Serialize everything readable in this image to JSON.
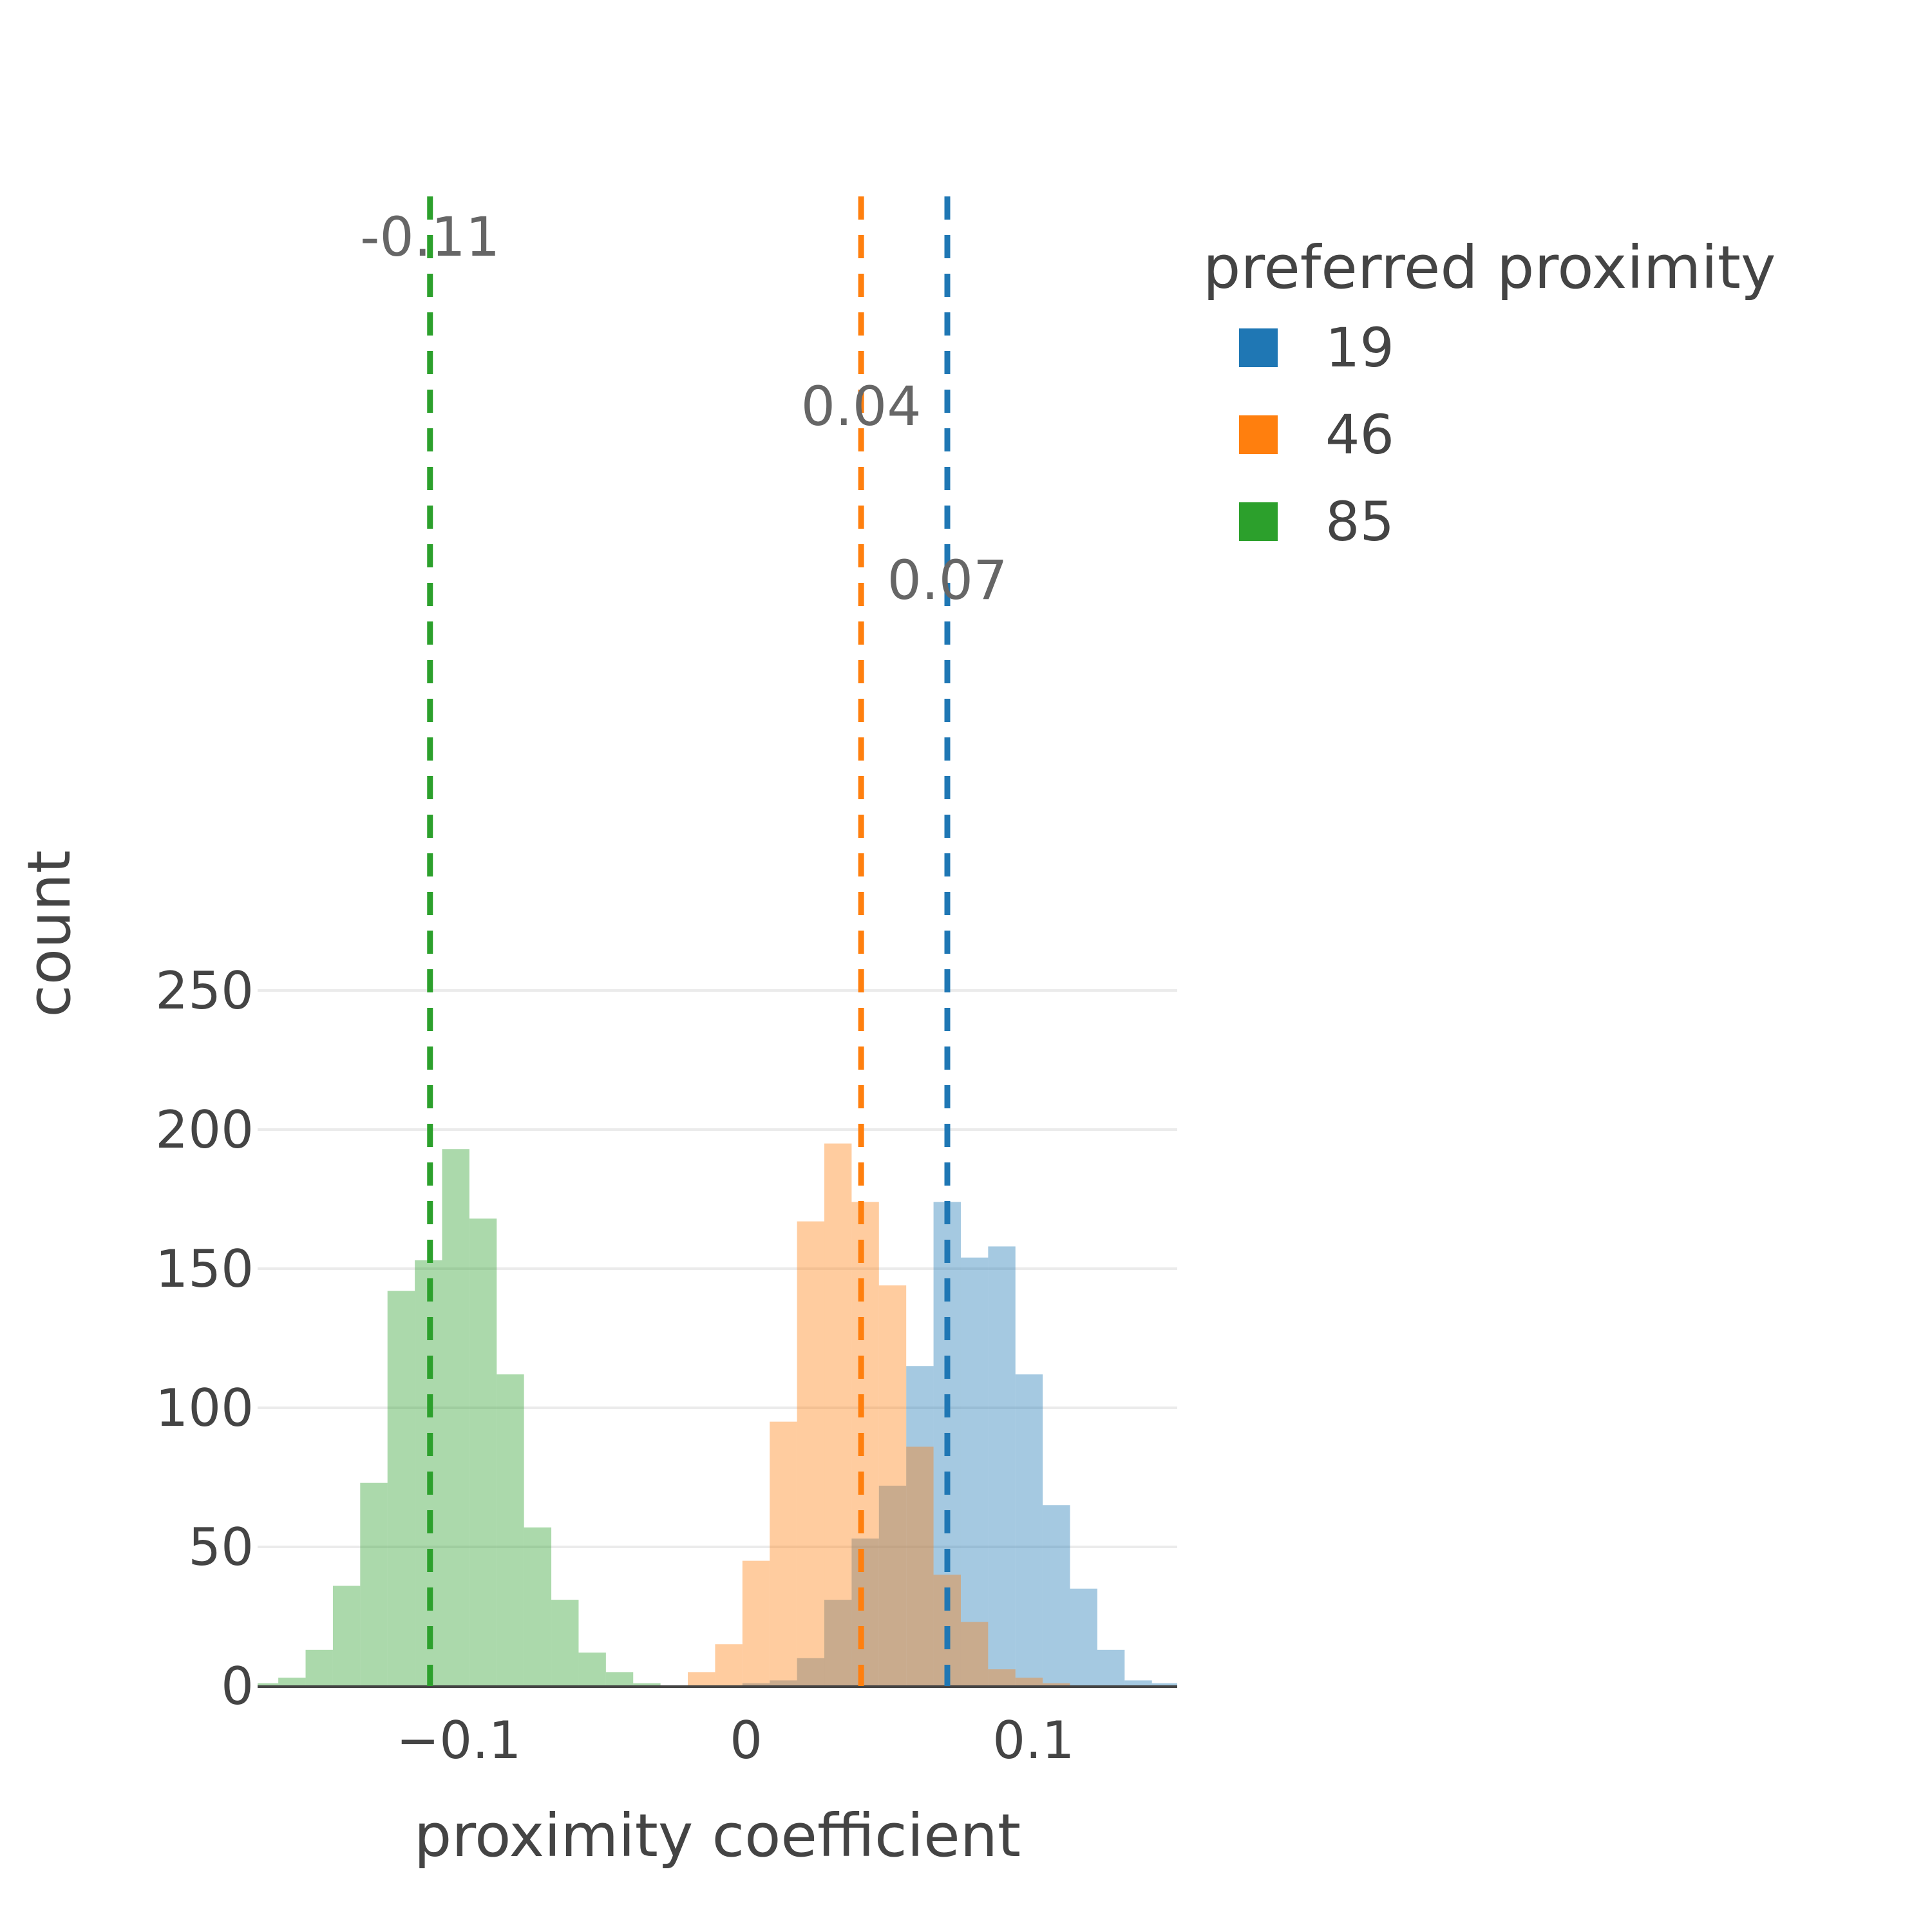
{
  "chart_data": {
    "type": "bar",
    "barmode": "overlay",
    "xlabel": "proximity coefficient",
    "ylabel": "count",
    "xlim": [
      -0.17,
      0.15
    ],
    "ylim": [
      0,
      250
    ],
    "xticks": [
      {
        "value": -0.1,
        "label": "−0.1"
      },
      {
        "value": 0,
        "label": "0"
      },
      {
        "value": 0.1,
        "label": "0.1"
      }
    ],
    "yticks": [
      {
        "value": 0,
        "label": "0"
      },
      {
        "value": 50,
        "label": "50"
      },
      {
        "value": 100,
        "label": "100"
      },
      {
        "value": 150,
        "label": "150"
      },
      {
        "value": 200,
        "label": "200"
      },
      {
        "value": 250,
        "label": "250"
      }
    ],
    "grid": true,
    "bin_width": 0.0095,
    "legend": {
      "title": "preferred proximity",
      "position": "top-right"
    },
    "series": [
      {
        "name": "19",
        "color": "#1f77b4",
        "bins": [
          [
            -0.0013,
            1
          ],
          [
            0.0082,
            2
          ],
          [
            0.0177,
            10
          ],
          [
            0.0272,
            31
          ],
          [
            0.0367,
            53
          ],
          [
            0.0462,
            72
          ],
          [
            0.0557,
            115
          ],
          [
            0.0652,
            174
          ],
          [
            0.0747,
            154
          ],
          [
            0.0842,
            158
          ],
          [
            0.0937,
            112
          ],
          [
            0.1032,
            65
          ],
          [
            0.1127,
            35
          ],
          [
            0.1222,
            13
          ],
          [
            0.1317,
            2
          ],
          [
            0.1412,
            1
          ],
          [
            0.1507,
            2
          ]
        ],
        "mean_value": 0.07,
        "mean_label": "0.07"
      },
      {
        "name": "46",
        "color": "#ff7f0e",
        "bins": [
          [
            -0.0203,
            5
          ],
          [
            -0.0108,
            15
          ],
          [
            -0.0013,
            45
          ],
          [
            0.0082,
            95
          ],
          [
            0.0177,
            167
          ],
          [
            0.0272,
            195
          ],
          [
            0.0367,
            174
          ],
          [
            0.0462,
            144
          ],
          [
            0.0557,
            86
          ],
          [
            0.0652,
            40
          ],
          [
            0.0747,
            23
          ],
          [
            0.0842,
            6
          ],
          [
            0.0937,
            3
          ],
          [
            0.1032,
            1
          ]
        ],
        "mean_value": 0.04,
        "mean_label": "0.04"
      },
      {
        "name": "85",
        "color": "#2ca02c",
        "bins": [
          [
            -0.1723,
            1
          ],
          [
            -0.1628,
            3
          ],
          [
            -0.1533,
            13
          ],
          [
            -0.1438,
            36
          ],
          [
            -0.1343,
            73
          ],
          [
            -0.1248,
            142
          ],
          [
            -0.1153,
            153
          ],
          [
            -0.1058,
            193
          ],
          [
            -0.0963,
            168
          ],
          [
            -0.0868,
            112
          ],
          [
            -0.0773,
            57
          ],
          [
            -0.0678,
            31
          ],
          [
            -0.0583,
            12
          ],
          [
            -0.0488,
            5
          ],
          [
            -0.0393,
            1
          ]
        ],
        "mean_value": -0.11,
        "mean_label": "-0.11"
      }
    ]
  }
}
